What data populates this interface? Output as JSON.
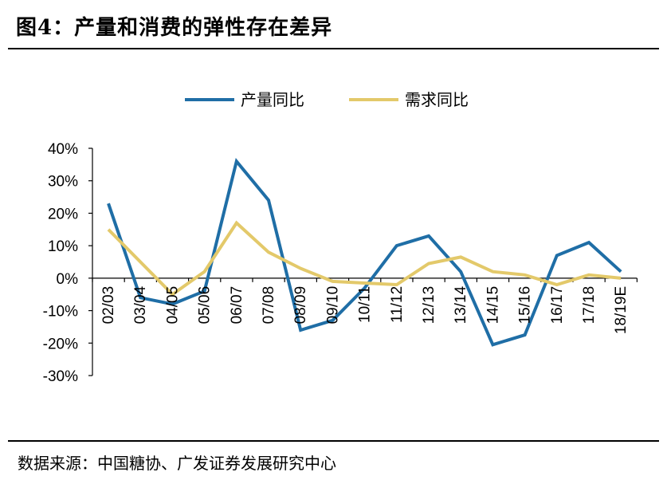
{
  "header": {
    "title": "图4：产量和消费的弹性存在差异"
  },
  "source": "数据来源：中国糖协、广发证券发展研究中心",
  "colors": {
    "production": "#1f6ea6",
    "demand": "#e3c96a"
  },
  "chart_data": {
    "type": "line",
    "categories": [
      "02/03",
      "03/04",
      "04/05",
      "05/06",
      "06/07",
      "07/08",
      "08/09",
      "09/10",
      "10/11",
      "11/12",
      "12/13",
      "13/14",
      "14/15",
      "15/16",
      "16/17",
      "17/18",
      "18/19E"
    ],
    "ylim": [
      -30,
      40
    ],
    "yticks": [
      40,
      30,
      20,
      10,
      0,
      -10,
      -20,
      -30
    ],
    "ytick_labels": [
      "40%",
      "30%",
      "20%",
      "10%",
      "0%",
      "-10%",
      "-20%",
      "-30%"
    ],
    "legend_position": "top",
    "grid": false,
    "series": [
      {
        "name": "产量同比",
        "values": [
          23,
          -6,
          -8,
          -4,
          36,
          24,
          -16,
          -13,
          -3,
          10,
          13,
          2,
          -20.5,
          -17.5,
          7,
          11,
          2
        ]
      },
      {
        "name": "需求同比",
        "values": [
          15,
          5,
          -5,
          2,
          17,
          8,
          3,
          -1,
          -1.5,
          -2,
          4.5,
          6.5,
          2,
          1,
          -2,
          1,
          0
        ]
      }
    ]
  }
}
